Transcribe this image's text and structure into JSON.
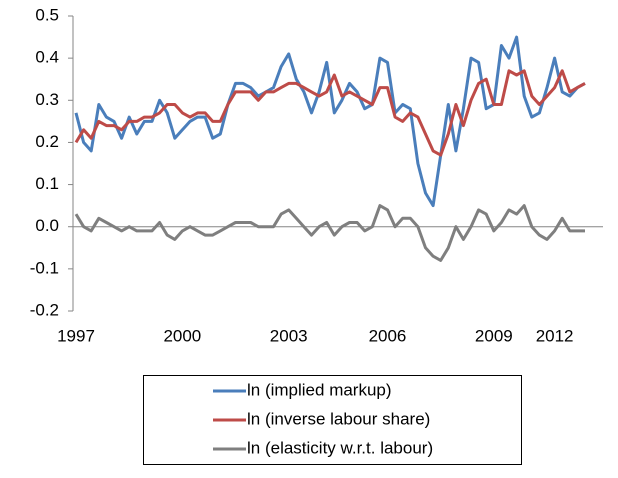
{
  "chart_data": {
    "type": "line",
    "categories": [
      "1997",
      null,
      null,
      null,
      null,
      null,
      null,
      null,
      null,
      null,
      null,
      null,
      null,
      null,
      "2000",
      null,
      null,
      null,
      null,
      null,
      null,
      null,
      null,
      null,
      null,
      null,
      null,
      null,
      "2003",
      null,
      null,
      null,
      null,
      null,
      null,
      null,
      null,
      null,
      null,
      null,
      null,
      "2006",
      null,
      null,
      null,
      null,
      null,
      null,
      null,
      null,
      null,
      null,
      null,
      null,
      null,
      "2009",
      null,
      null,
      null,
      null,
      null,
      null,
      null,
      "2012",
      null,
      null,
      null,
      null
    ],
    "series": [
      {
        "name": "ln (implied markup)",
        "color": "#4a7ebb",
        "values": [
          0.27,
          0.2,
          0.18,
          0.29,
          0.26,
          0.25,
          0.21,
          0.26,
          0.22,
          0.25,
          0.25,
          0.3,
          0.27,
          0.21,
          0.23,
          0.25,
          0.26,
          0.26,
          0.21,
          0.22,
          0.29,
          0.34,
          0.34,
          0.33,
          0.31,
          0.32,
          0.33,
          0.38,
          0.41,
          0.35,
          0.32,
          0.27,
          0.32,
          0.39,
          0.27,
          0.3,
          0.34,
          0.32,
          0.28,
          0.29,
          0.4,
          0.39,
          0.27,
          0.29,
          0.28,
          0.15,
          0.08,
          0.05,
          0.17,
          0.29,
          0.18,
          0.28,
          0.4,
          0.39,
          0.28,
          0.29,
          0.43,
          0.4,
          0.45,
          0.31,
          0.26,
          0.27,
          0.33,
          0.4,
          0.32,
          0.31,
          0.33,
          0.34
        ]
      },
      {
        "name": "ln (inverse labour share)",
        "color": "#be4b48",
        "values": [
          0.2,
          0.23,
          0.21,
          0.25,
          0.24,
          0.24,
          0.23,
          0.25,
          0.25,
          0.26,
          0.26,
          0.27,
          0.29,
          0.29,
          0.27,
          0.26,
          0.27,
          0.27,
          0.25,
          0.25,
          0.29,
          0.32,
          0.32,
          0.32,
          0.3,
          0.32,
          0.32,
          0.33,
          0.34,
          0.34,
          0.33,
          0.32,
          0.31,
          0.32,
          0.36,
          0.31,
          0.32,
          0.31,
          0.3,
          0.29,
          0.33,
          0.33,
          0.26,
          0.25,
          0.27,
          0.26,
          0.22,
          0.18,
          0.17,
          0.22,
          0.29,
          0.24,
          0.3,
          0.34,
          0.35,
          0.29,
          0.29,
          0.37,
          0.36,
          0.37,
          0.31,
          0.29,
          0.31,
          0.33,
          0.37,
          0.32,
          0.33,
          0.34
        ]
      },
      {
        "name": "ln (elasticity w.r.t. labour)",
        "color": "#7f7f7f",
        "values": [
          0.03,
          0.0,
          -0.01,
          0.02,
          0.01,
          0.0,
          -0.01,
          0.0,
          -0.01,
          -0.01,
          -0.01,
          0.01,
          -0.02,
          -0.03,
          -0.01,
          0.0,
          -0.01,
          -0.02,
          -0.02,
          -0.01,
          0.0,
          0.01,
          0.01,
          0.01,
          0.0,
          0.0,
          0.0,
          0.03,
          0.04,
          0.02,
          0.0,
          -0.02,
          0.0,
          0.01,
          -0.02,
          0.0,
          0.01,
          0.01,
          -0.01,
          0.0,
          0.05,
          0.04,
          0.0,
          0.02,
          0.02,
          0.0,
          -0.05,
          -0.07,
          -0.08,
          -0.05,
          0.0,
          -0.03,
          0.0,
          0.04,
          0.03,
          -0.01,
          0.01,
          0.04,
          0.03,
          0.05,
          0.0,
          -0.02,
          -0.03,
          -0.01,
          0.02,
          -0.01,
          -0.01,
          -0.01
        ]
      }
    ],
    "ylim": [
      -0.2,
      0.5
    ],
    "yticks": [
      -0.2,
      -0.1,
      {
        "value": 0,
        "label": "0.0"
      },
      0.1,
      0.2,
      0.3,
      0.4,
      0.5
    ],
    "grid": false,
    "legend": "bottom"
  }
}
